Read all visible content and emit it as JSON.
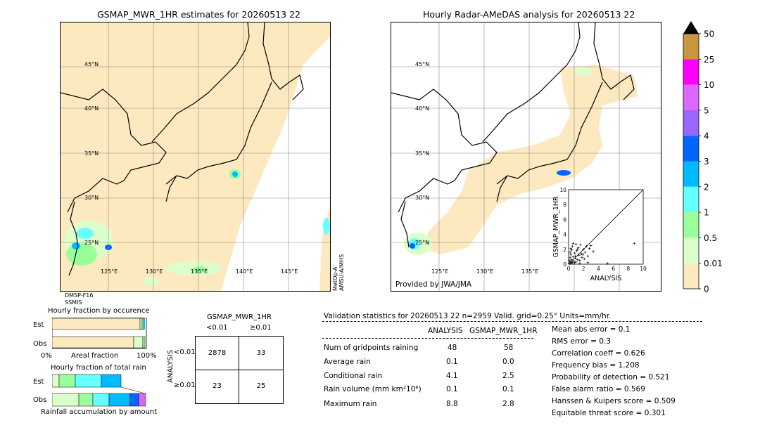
{
  "left_map": {
    "title": "GSMAP_MWR_1HR estimates for 20260513 22",
    "satellite_left": "DMSP-F16",
    "sensor_left": "SSMIS",
    "satellite_right": "MetOp-A",
    "sensor_right": "AMSU-A/MHS",
    "lat_labels": [
      "45°N",
      "40°N",
      "35°N",
      "30°N",
      "25°N"
    ],
    "lon_labels": [
      "125°E",
      "130°E",
      "135°E",
      "140°E",
      "145°E"
    ]
  },
  "right_map": {
    "title": "Hourly Radar-AMeDAS analysis for 20260513 22",
    "provider": "Provided by JWA/JMA",
    "lat_labels": [
      "45°N",
      "40°N",
      "35°N",
      "30°N",
      "25°N"
    ],
    "lon_labels": [
      "125°E",
      "130°E",
      "135°E"
    ]
  },
  "colorbar": {
    "labels": [
      "50",
      "25",
      "10",
      "5",
      "4",
      "3",
      "2",
      "1",
      "0.5",
      "0.01",
      "0"
    ],
    "colors": [
      "#c8963c",
      "#ff00ff",
      "#dd66ff",
      "#9966ff",
      "#0066ff",
      "#00bbff",
      "#66ffff",
      "#99ff99",
      "#ddffcc",
      "#fde9bf"
    ],
    "over_color": "#000000"
  },
  "occurrence_chart": {
    "title": "Hourly fraction by occurence",
    "row_labels": [
      "Est",
      "Obs"
    ],
    "axis_left": "0%",
    "axis_mid": "Areal fraction",
    "axis_right": "100%"
  },
  "total_rain_chart": {
    "title": "Hourly fraction of total rain",
    "row_labels": [
      "Est",
      "Obs"
    ],
    "axis_label": "Rainfall accumulation by amount"
  },
  "contingency": {
    "title": "GSMAP_MWR_1HR",
    "col_labels": [
      "<0.01",
      "≥0.01"
    ],
    "row_axis": "ANALYSIS",
    "row_labels": [
      "<0.01",
      "≥0.01"
    ],
    "cells": [
      [
        "2878",
        "33"
      ],
      [
        "23",
        "25"
      ]
    ]
  },
  "validation": {
    "header": "Validation statistics for 20260513 22  n=2959 Valid. grid=0.25° Units=mm/hr.",
    "col_analysis": "ANALYSIS",
    "col_model": "GSMAP_MWR_1HR",
    "rows": [
      {
        "label": "Num of gridpoints raining",
        "analysis": "48",
        "model": "58"
      },
      {
        "label": "Average rain",
        "analysis": "0.1",
        "model": "0.0"
      },
      {
        "label": "Conditional rain",
        "analysis": "4.1",
        "model": "2.5"
      },
      {
        "label": "Rain volume (mm km²10⁶)",
        "analysis": "0.1",
        "model": "0.1"
      },
      {
        "label": "Maximum rain",
        "analysis": "8.8",
        "model": "2.8"
      }
    ],
    "scores": [
      "Mean abs error =    0.1",
      "RMS error =    0.3",
      "Correlation coeff =  0.626",
      "Frequency bias =  1.208",
      "Probability of detection =  0.521",
      "False alarm ratio =  0.569",
      "Hanssen & Kuipers score =  0.509",
      "Equitable threat score =  0.301"
    ]
  },
  "chart_data": {
    "type": "scatter",
    "xlabel": "ANALYSIS",
    "ylabel": "GSMAP_MWR_1HR",
    "xlim": [
      0,
      10
    ],
    "ylim": [
      0,
      10
    ],
    "ticks": [
      "0",
      "2",
      "4",
      "6",
      "8",
      "10"
    ],
    "points": [
      [
        0.2,
        0.3
      ],
      [
        0.3,
        0.1
      ],
      [
        0.4,
        0.6
      ],
      [
        0.5,
        0.2
      ],
      [
        0.6,
        1.0
      ],
      [
        0.7,
        0.4
      ],
      [
        0.8,
        1.5
      ],
      [
        0.9,
        0.8
      ],
      [
        1.0,
        0.3
      ],
      [
        1.1,
        1.8
      ],
      [
        1.2,
        0.6
      ],
      [
        1.3,
        2.2
      ],
      [
        1.4,
        1.2
      ],
      [
        1.5,
        0.5
      ],
      [
        1.6,
        2.6
      ],
      [
        1.7,
        1.4
      ],
      [
        1.8,
        0.9
      ],
      [
        2.0,
        2.0
      ],
      [
        2.2,
        1.6
      ],
      [
        2.4,
        2.4
      ],
      [
        2.6,
        1.1
      ],
      [
        2.8,
        2.1
      ],
      [
        3.0,
        2.5
      ],
      [
        3.3,
        1.7
      ],
      [
        0.3,
        1.3
      ],
      [
        0.5,
        2.4
      ],
      [
        0.2,
        0.9
      ],
      [
        0.4,
        1.9
      ],
      [
        0.6,
        2.8
      ],
      [
        0.8,
        0.2
      ],
      [
        1.0,
        2.7
      ],
      [
        1.2,
        2.0
      ],
      [
        0.1,
        0.5
      ],
      [
        0.2,
        1.6
      ],
      [
        0.3,
        2.1
      ],
      [
        0.9,
        1.1
      ],
      [
        1.9,
        1.3
      ],
      [
        2.1,
        0.7
      ],
      [
        0.1,
        0.1
      ],
      [
        0.4,
        0.3
      ],
      [
        8.8,
        2.8
      ],
      [
        2.6,
        0.2
      ],
      [
        1.5,
        0.1
      ],
      [
        5.2,
        0.1
      ]
    ]
  }
}
